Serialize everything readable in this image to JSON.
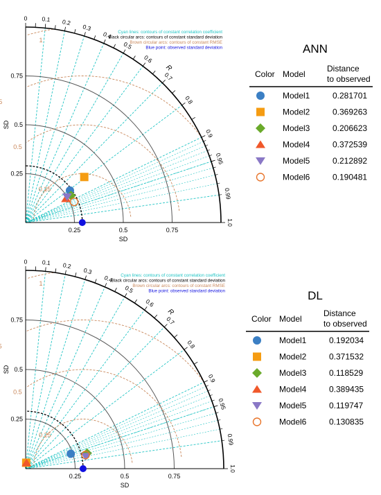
{
  "chart_data": [
    {
      "type": "taylor",
      "title": "ANN",
      "xlabel": "SD",
      "ylabel": "SD",
      "arc_label": "R",
      "sd_ticks": [
        "0.25",
        "0.5",
        "0.75"
      ],
      "sd_ticks_left": [
        "0.25",
        "0.5",
        "0.75",
        "1"
      ],
      "corr_ticks": [
        "0",
        "0.1",
        "0.2",
        "0.3",
        "0.4",
        "0.5",
        "0.6",
        "0.7",
        "0.8",
        "0.9",
        "0.95",
        "0.99",
        "1.0"
      ],
      "rmse_labels": [
        "0.25",
        "0.5",
        "0.75",
        "1"
      ],
      "legend_lines": [
        "Cyan lines: contours of constant correlation coefficient",
        "Black circular arcs: contours of constant standard deviation",
        "Brown circular arcs: contours of constant RMSE",
        "Blue point: observed standard deviation"
      ],
      "table": {
        "headers": [
          "Color",
          "Model",
          "Distance\nto observed"
        ],
        "rows": [
          {
            "model": "Model1",
            "distance": "0.281701"
          },
          {
            "model": "Model2",
            "distance": "0.369263"
          },
          {
            "model": "Model3",
            "distance": "0.206623"
          },
          {
            "model": "Model4",
            "distance": "0.372539"
          },
          {
            "model": "Model5",
            "distance": "0.212892"
          },
          {
            "model": "Model6",
            "distance": "0.190481"
          }
        ]
      },
      "observed_sd": 0.29,
      "points": [
        {
          "model": "Model1",
          "sd": 0.28,
          "corr": 0.81
        },
        {
          "model": "Model2",
          "sd": 0.38,
          "corr": 0.79
        },
        {
          "model": "Model3",
          "sd": 0.27,
          "corr": 0.86
        },
        {
          "model": "Model4",
          "sd": 0.24,
          "corr": 0.86
        },
        {
          "model": "Model5",
          "sd": 0.25,
          "corr": 0.85
        },
        {
          "model": "Model6",
          "sd": 0.27,
          "corr": 0.92
        }
      ]
    },
    {
      "type": "taylor",
      "title": "DL",
      "xlabel": "SD",
      "ylabel": "SD",
      "arc_label": "R",
      "sd_ticks": [
        "0.25",
        "0.5",
        "0.75"
      ],
      "sd_ticks_left": [
        "0.25",
        "0.5",
        "0.75",
        "1"
      ],
      "corr_ticks": [
        "0",
        "0.1",
        "0.2",
        "0.3",
        "0.4",
        "0.5",
        "0.6",
        "0.7",
        "0.8",
        "0.9",
        "0.95",
        "0.99",
        "1.0"
      ],
      "rmse_labels": [
        "0.25",
        "0.5",
        "0.75",
        "1"
      ],
      "legend_lines": [
        "Cyan lines: contours of constant correlation coefficient",
        "Black circular arcs: contours of constant standard deviation",
        "Brown circular arcs: contours of constant RMSE",
        "Blue point: observed standard deviation"
      ],
      "table": {
        "headers": [
          "Color",
          "Model",
          "Distance\nto observed"
        ],
        "rows": [
          {
            "model": "Model1",
            "distance": "0.192034"
          },
          {
            "model": "Model2",
            "distance": "0.371532"
          },
          {
            "model": "Model3",
            "distance": "0.118529"
          },
          {
            "model": "Model4",
            "distance": "0.389435"
          },
          {
            "model": "Model5",
            "distance": "0.119747"
          },
          {
            "model": "Model6",
            "distance": "0.130835"
          }
        ]
      },
      "observed_sd": 0.29,
      "points": [
        {
          "model": "Model1",
          "sd": 0.24,
          "corr": 0.95
        },
        {
          "model": "Model2",
          "sd": 0.03,
          "corr": 0.1
        },
        {
          "model": "Model3",
          "sd": 0.32,
          "corr": 0.97
        },
        {
          "model": "Model4",
          "sd": 0.03,
          "corr": 0.15
        },
        {
          "model": "Model5",
          "sd": 0.31,
          "corr": 0.98
        },
        {
          "model": "Model6",
          "sd": 0.31,
          "corr": 0.975
        }
      ]
    }
  ],
  "colors": {
    "cyan": "#20c4c4",
    "brown": "#c8875a",
    "black": "#000000",
    "observed": "#1010e0",
    "model1": "#3b7fc4",
    "model2": "#f59c12",
    "model3": "#6aaa2a",
    "model4": "#f0582a",
    "model5": "#8a78c6",
    "model6": "#e8742a"
  }
}
